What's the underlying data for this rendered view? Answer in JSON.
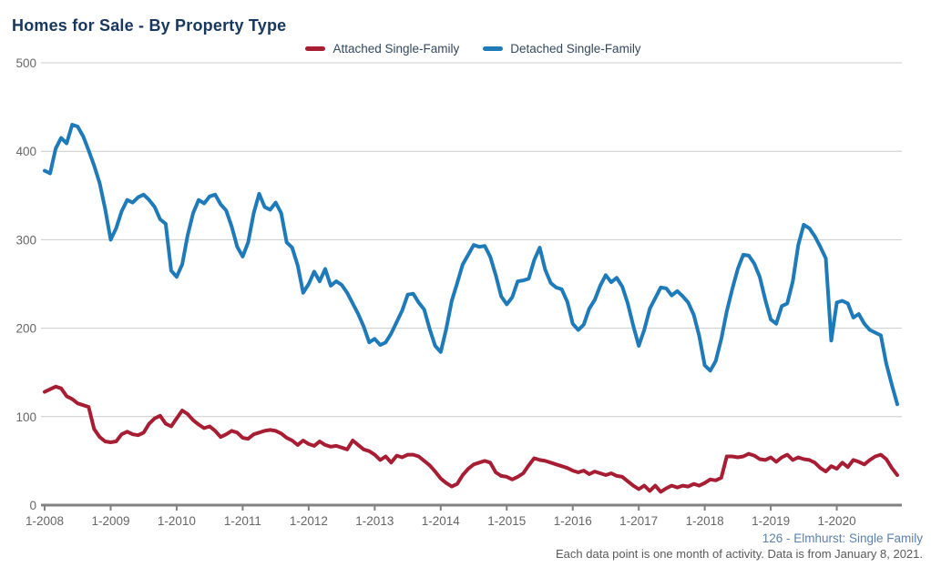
{
  "header": {
    "title": "Homes for Sale - By Property Type"
  },
  "footer": {
    "source_link": "126 - Elmhurst: Single Family",
    "note": "Each data point is one month of activity. Data is from January 8, 2021."
  },
  "colors": {
    "attached": "#a71e34",
    "detached": "#1e7ab8",
    "gridline": "#cccccc",
    "axis": "#828282",
    "axis_text": "#666666",
    "title": "#17375e"
  },
  "chart_data": {
    "type": "line",
    "title": "Homes for Sale - By Property Type",
    "x_tick_labels": [
      "1-2008",
      "1-2009",
      "1-2010",
      "1-2011",
      "1-2012",
      "1-2013",
      "1-2014",
      "1-2015",
      "1-2016",
      "1-2017",
      "1-2018",
      "1-2019",
      "1-2020"
    ],
    "y_ticks": [
      0,
      100,
      200,
      300,
      400,
      500
    ],
    "ylim": [
      0,
      500
    ],
    "months_per_tick": 12,
    "x_start": "1-2008",
    "x_end": "12-2020",
    "grid": "horizontal",
    "legend_position": "top-center",
    "series": [
      {
        "name": "Attached Single-Family",
        "color": "#a71e34",
        "values": [
          128,
          131,
          134,
          132,
          123,
          120,
          115,
          113,
          111,
          86,
          77,
          72,
          71,
          72,
          80,
          83,
          80,
          79,
          82,
          92,
          98,
          101,
          92,
          89,
          98,
          107,
          103,
          96,
          91,
          87,
          89,
          84,
          77,
          80,
          84,
          82,
          76,
          75,
          80,
          82,
          84,
          85,
          84,
          81,
          76,
          73,
          68,
          73,
          69,
          67,
          72,
          68,
          66,
          67,
          65,
          63,
          73,
          68,
          63,
          61,
          57,
          51,
          55,
          48,
          56,
          54,
          57,
          57,
          55,
          50,
          45,
          38,
          30,
          25,
          21,
          24,
          34,
          41,
          46,
          48,
          50,
          48,
          37,
          33,
          32,
          29,
          32,
          36,
          45,
          53,
          51,
          50,
          48,
          46,
          44,
          42,
          39,
          37,
          39,
          35,
          38,
          36,
          34,
          36,
          33,
          32,
          27,
          22,
          18,
          22,
          16,
          22,
          15,
          19,
          22,
          20,
          22,
          21,
          24,
          22,
          25,
          29,
          28,
          31,
          55,
          55,
          54,
          55,
          58,
          56,
          52,
          51,
          54,
          49,
          54,
          57,
          51,
          54,
          52,
          51,
          48,
          42,
          38,
          44,
          41,
          48,
          43,
          51,
          49,
          46,
          51,
          55,
          57,
          52,
          42,
          34
        ]
      },
      {
        "name": "Detached Single-Family",
        "color": "#1e7ab8",
        "values": [
          378,
          375,
          403,
          415,
          409,
          430,
          428,
          417,
          401,
          384,
          364,
          335,
          300,
          313,
          332,
          345,
          342,
          348,
          351,
          345,
          337,
          323,
          318,
          265,
          258,
          272,
          305,
          330,
          345,
          341,
          349,
          351,
          340,
          333,
          315,
          292,
          281,
          297,
          330,
          352,
          337,
          334,
          342,
          330,
          297,
          291,
          271,
          240,
          250,
          264,
          253,
          267,
          248,
          253,
          249,
          240,
          228,
          216,
          202,
          184,
          188,
          181,
          184,
          194,
          207,
          220,
          238,
          239,
          229,
          221,
          199,
          180,
          173,
          199,
          231,
          251,
          272,
          283,
          294,
          292,
          293,
          281,
          260,
          236,
          227,
          235,
          253,
          254,
          256,
          277,
          291,
          266,
          251,
          246,
          244,
          230,
          205,
          198,
          204,
          222,
          232,
          248,
          260,
          252,
          257,
          247,
          228,
          203,
          180,
          198,
          222,
          234,
          246,
          245,
          237,
          242,
          236,
          229,
          215,
          191,
          158,
          152,
          163,
          188,
          219,
          244,
          267,
          283,
          282,
          273,
          258,
          232,
          210,
          205,
          225,
          228,
          253,
          294,
          317,
          313,
          304,
          292,
          279,
          186,
          229,
          231,
          228,
          212,
          216,
          205,
          198,
          195,
          192,
          160,
          136,
          114
        ]
      }
    ]
  }
}
